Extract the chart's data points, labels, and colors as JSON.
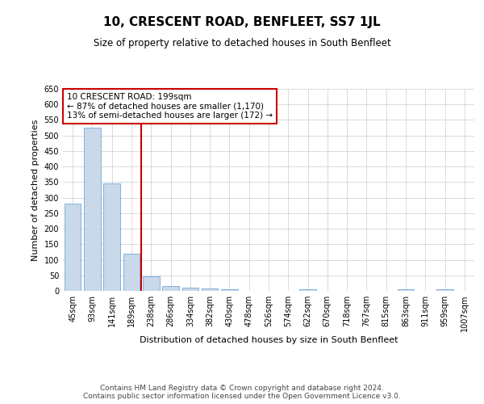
{
  "title": "10, CRESCENT ROAD, BENFLEET, SS7 1JL",
  "subtitle": "Size of property relative to detached houses in South Benfleet",
  "xlabel": "Distribution of detached houses by size in South Benfleet",
  "ylabel": "Number of detached properties",
  "categories": [
    "45sqm",
    "93sqm",
    "141sqm",
    "189sqm",
    "238sqm",
    "286sqm",
    "334sqm",
    "382sqm",
    "430sqm",
    "478sqm",
    "526sqm",
    "574sqm",
    "622sqm",
    "670sqm",
    "718sqm",
    "767sqm",
    "815sqm",
    "863sqm",
    "911sqm",
    "959sqm",
    "1007sqm"
  ],
  "values": [
    280,
    525,
    345,
    120,
    48,
    16,
    10,
    8,
    5,
    0,
    0,
    0,
    5,
    0,
    0,
    0,
    0,
    5,
    0,
    5,
    0
  ],
  "bar_color": "#c9d9ea",
  "bar_edge_color": "#5b9bd5",
  "red_line_x": 3.5,
  "annotation_text": "10 CRESCENT ROAD: 199sqm\n← 87% of detached houses are smaller (1,170)\n13% of semi-detached houses are larger (172) →",
  "annotation_box_color": "#ffffff",
  "annotation_box_edge_color": "#cc0000",
  "ylim": [
    0,
    650
  ],
  "yticks": [
    0,
    50,
    100,
    150,
    200,
    250,
    300,
    350,
    400,
    450,
    500,
    550,
    600,
    650
  ],
  "footer": "Contains HM Land Registry data © Crown copyright and database right 2024.\nContains public sector information licensed under the Open Government Licence v3.0.",
  "bg_color": "#ffffff",
  "grid_color": "#cccccc",
  "title_fontsize": 11,
  "subtitle_fontsize": 8.5,
  "axis_label_fontsize": 8,
  "tick_fontsize": 7,
  "footer_fontsize": 6.5
}
